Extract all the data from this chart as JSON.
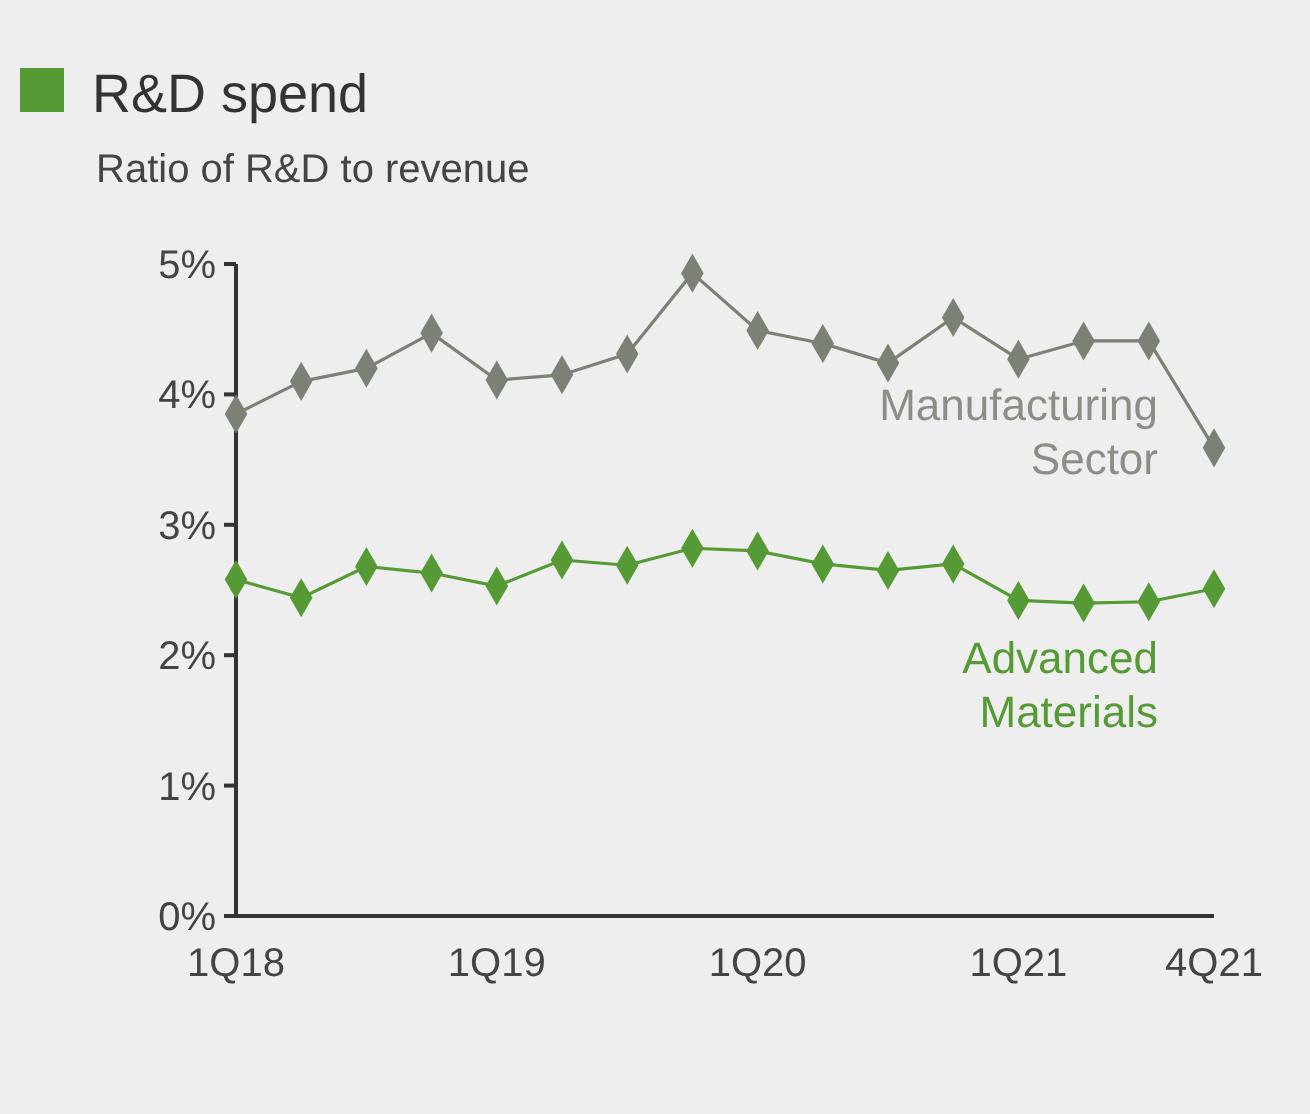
{
  "chart_data": {
    "type": "line",
    "title": "R&D spend",
    "subtitle": "Ratio of R&D to revenue",
    "categories": [
      "1Q18",
      null,
      null,
      null,
      "1Q19",
      null,
      null,
      null,
      "1Q20",
      null,
      null,
      null,
      "1Q21",
      null,
      null,
      "4Q21"
    ],
    "series": [
      {
        "name": "Manufacturing Sector",
        "color": "#7b8275",
        "values": [
          3.85,
          4.1,
          4.2,
          4.47,
          4.11,
          4.15,
          4.31,
          4.93,
          4.49,
          4.39,
          4.24,
          4.59,
          4.27,
          4.41,
          4.41,
          3.59
        ]
      },
      {
        "name": "Advanced Materials",
        "color": "#559a35",
        "values": [
          2.58,
          2.44,
          2.68,
          2.63,
          2.53,
          2.73,
          2.69,
          2.82,
          2.8,
          2.7,
          2.65,
          2.7,
          2.42,
          2.4,
          2.41,
          2.51
        ]
      }
    ],
    "ylim": [
      0,
      5
    ],
    "yticks": [
      {
        "value": 0,
        "label": "0%"
      },
      {
        "value": 1,
        "label": "1%"
      },
      {
        "value": 2,
        "label": "2%"
      },
      {
        "value": 3,
        "label": "3%"
      },
      {
        "value": 4,
        "label": "4%"
      },
      {
        "value": 5,
        "label": "5%"
      }
    ],
    "marker": "diamond",
    "line_style": "solid",
    "grid": false
  }
}
